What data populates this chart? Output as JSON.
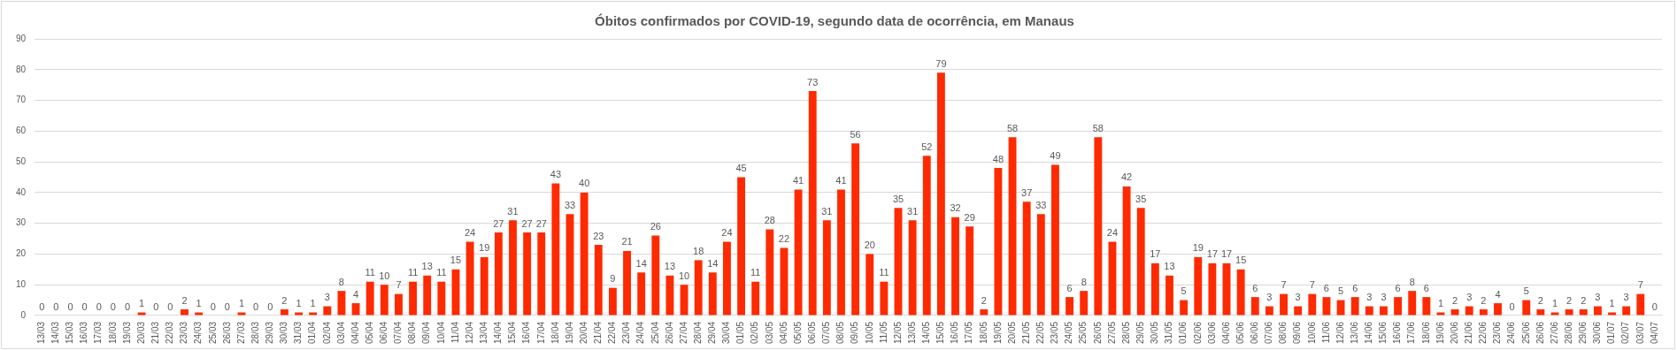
{
  "chart_data": {
    "type": "bar",
    "title": "Óbitos confirmados por COVID-19, segundo data de ocorrência, em Manaus",
    "categories": [
      "13/03",
      "14/03",
      "15/03",
      "16/03",
      "17/03",
      "18/03",
      "19/03",
      "20/03",
      "21/03",
      "22/03",
      "23/03",
      "24/03",
      "25/03",
      "26/03",
      "27/03",
      "28/03",
      "29/03",
      "30/03",
      "31/03",
      "01/04",
      "02/04",
      "03/04",
      "04/04",
      "05/04",
      "06/04",
      "07/04",
      "08/04",
      "09/04",
      "10/04",
      "11/04",
      "12/04",
      "13/04",
      "14/04",
      "15/04",
      "16/04",
      "17/04",
      "18/04",
      "19/04",
      "20/04",
      "21/04",
      "22/04",
      "23/04",
      "24/04",
      "25/04",
      "26/04",
      "27/04",
      "28/04",
      "29/04",
      "30/04",
      "01/05",
      "02/05",
      "03/05",
      "04/05",
      "05/05",
      "06/05",
      "07/05",
      "08/05",
      "09/05",
      "10/05",
      "11/05",
      "12/05",
      "13/05",
      "14/05",
      "15/05",
      "16/05",
      "17/05",
      "18/05",
      "19/05",
      "20/05",
      "21/05",
      "22/05",
      "23/05",
      "24/05",
      "25/05",
      "26/05",
      "27/05",
      "28/05",
      "29/05",
      "30/05",
      "31/05",
      "01/06",
      "02/06",
      "03/06",
      "04/06",
      "05/06",
      "06/06",
      "07/06",
      "08/06",
      "09/06",
      "10/06",
      "11/06",
      "12/06",
      "13/06",
      "14/06",
      "15/06",
      "16/06",
      "17/06",
      "18/06",
      "19/06",
      "20/06",
      "21/06",
      "22/06",
      "23/06",
      "24/06",
      "25/06",
      "26/06",
      "27/06",
      "28/06",
      "29/06",
      "30/06",
      "01/07",
      "02/07",
      "03/07",
      "04/07"
    ],
    "values": [
      0,
      0,
      0,
      0,
      0,
      0,
      0,
      1,
      0,
      0,
      2,
      1,
      0,
      0,
      1,
      0,
      0,
      2,
      1,
      1,
      3,
      8,
      4,
      11,
      10,
      7,
      11,
      13,
      11,
      15,
      24,
      19,
      27,
      31,
      27,
      27,
      43,
      33,
      40,
      23,
      9,
      21,
      14,
      26,
      13,
      10,
      18,
      14,
      24,
      45,
      11,
      28,
      22,
      41,
      73,
      31,
      41,
      56,
      20,
      11,
      35,
      31,
      52,
      79,
      32,
      29,
      2,
      48,
      58,
      37,
      33,
      49,
      6,
      8,
      58,
      24,
      42,
      35,
      17,
      13,
      5,
      19,
      17,
      17,
      15,
      6,
      3,
      7,
      3,
      7,
      6,
      5,
      6,
      3,
      3,
      6,
      8,
      6,
      1,
      2,
      3,
      2,
      4,
      0,
      5,
      2,
      1,
      2,
      2,
      3,
      1,
      3,
      7,
      0
    ],
    "color": "#ff2a00",
    "ylim": [
      0,
      90
    ],
    "yticks": [
      0,
      10,
      20,
      30,
      40,
      50,
      60,
      70,
      80,
      90
    ],
    "grid": "y",
    "data_labels": true
  }
}
